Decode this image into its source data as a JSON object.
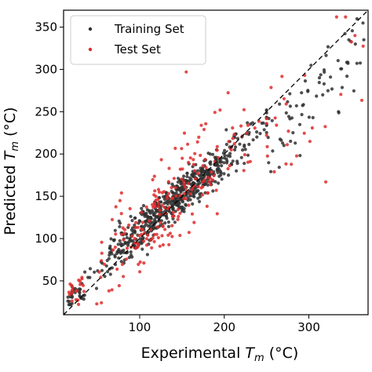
{
  "chart_data": {
    "type": "scatter",
    "xlabel_main": "Experimental ",
    "xlabel_sym": "T",
    "xlabel_sub": "m",
    "xlabel_unit": " (°C)",
    "ylabel_main": "Predicted ",
    "ylabel_sym": "T",
    "ylabel_sub": "m",
    "ylabel_unit": " (°C)",
    "xlim": [
      10,
      370
    ],
    "ylim": [
      10,
      370
    ],
    "xticks": [
      100,
      200,
      300
    ],
    "yticks": [
      50,
      100,
      150,
      200,
      250,
      300,
      350
    ],
    "diagonal": "dashed y = x reference line",
    "legend_position": "top-left",
    "series": [
      {
        "name": "Training Set",
        "color": "#303030",
        "n_points": 700
      },
      {
        "name": "Test Set",
        "color": "#e02b2b",
        "n_points": 260
      }
    ],
    "notable_points": [
      {
        "series": "Test Set",
        "x": 155,
        "y": 297
      },
      {
        "series": "Test Set",
        "x": 195,
        "y": 252
      },
      {
        "series": "Test Set",
        "x": 295,
        "y": 293
      },
      {
        "series": "Test Set",
        "x": 320,
        "y": 167
      },
      {
        "series": "Training Set",
        "x": 335,
        "y": 250
      },
      {
        "series": "Training Set",
        "x": 345,
        "y": 292
      },
      {
        "series": "Training Set",
        "x": 355,
        "y": 330
      },
      {
        "series": "Training Set",
        "x": 365,
        "y": 335
      }
    ]
  }
}
